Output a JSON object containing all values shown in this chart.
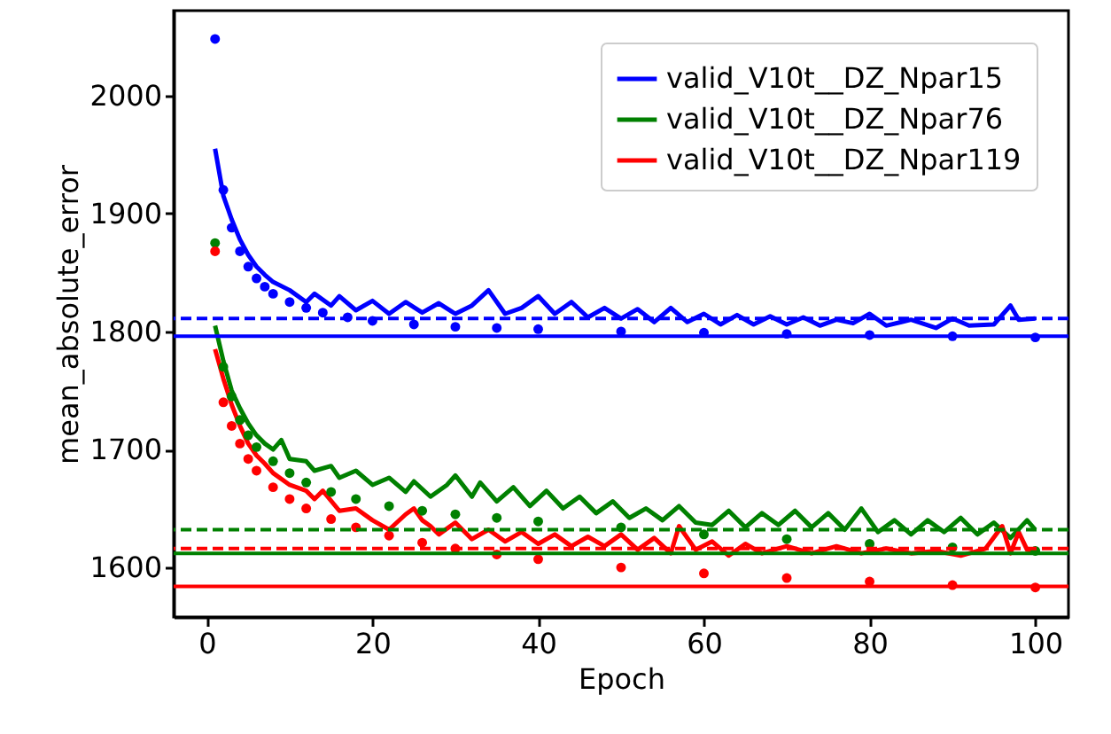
{
  "chart_data": {
    "type": "line",
    "xlabel": "Epoch",
    "ylabel": "mean_absolute_error",
    "xlim": [
      -4,
      104
    ],
    "ylim": [
      1558,
      2072
    ],
    "xticks": [
      0,
      20,
      40,
      60,
      80,
      100
    ],
    "yticks": [
      1600,
      1700,
      1800,
      1900,
      2000
    ],
    "grid": false,
    "legend": "top right",
    "series": [
      {
        "name": "valid_V10t__DZ_Npar15",
        "marker": "none",
        "color": "#0000ff",
        "x": [
          1,
          2,
          3,
          4,
          5,
          6,
          7,
          8,
          10,
          12,
          13,
          15,
          16,
          18,
          20,
          22,
          24,
          26,
          28,
          30,
          32,
          34,
          36,
          38,
          40,
          42,
          44,
          46,
          48,
          50,
          52,
          54,
          56,
          58,
          60,
          62,
          64,
          66,
          68,
          70,
          72,
          74,
          76,
          78,
          80,
          82,
          85,
          88,
          90,
          92,
          95,
          97,
          98,
          100
        ],
        "values": [
          1955,
          1915,
          1895,
          1878,
          1865,
          1855,
          1848,
          1842,
          1835,
          1825,
          1832,
          1822,
          1830,
          1818,
          1826,
          1815,
          1825,
          1816,
          1824,
          1815,
          1822,
          1835,
          1815,
          1820,
          1830,
          1815,
          1825,
          1812,
          1820,
          1811,
          1819,
          1808,
          1820,
          1808,
          1815,
          1806,
          1814,
          1806,
          1813,
          1806,
          1812,
          1805,
          1810,
          1807,
          1815,
          1805,
          1810,
          1803,
          1811,
          1805,
          1806,
          1822,
          1810,
          1811
        ]
      },
      {
        "name": "valid_V10t__DZ_Npar76",
        "marker": "none",
        "color": "#008000",
        "x": [
          1,
          2,
          3,
          4,
          5,
          6,
          7,
          8,
          9,
          10,
          12,
          13,
          15,
          16,
          18,
          20,
          22,
          24,
          25,
          27,
          29,
          30,
          32,
          33,
          35,
          37,
          39,
          41,
          43,
          45,
          47,
          49,
          51,
          53,
          55,
          57,
          59,
          61,
          63,
          65,
          67,
          69,
          71,
          73,
          75,
          77,
          79,
          81,
          83,
          85,
          87,
          89,
          91,
          93,
          95,
          97,
          99,
          100
        ],
        "values": [
          1805,
          1775,
          1750,
          1735,
          1722,
          1712,
          1705,
          1700,
          1708,
          1692,
          1690,
          1682,
          1686,
          1676,
          1682,
          1670,
          1676,
          1664,
          1673,
          1660,
          1670,
          1678,
          1660,
          1672,
          1656,
          1668,
          1652,
          1665,
          1650,
          1660,
          1646,
          1656,
          1642,
          1650,
          1640,
          1652,
          1638,
          1636,
          1648,
          1634,
          1646,
          1636,
          1648,
          1634,
          1646,
          1632,
          1650,
          1630,
          1640,
          1628,
          1640,
          1630,
          1642,
          1628,
          1638,
          1625,
          1640,
          1632
        ]
      },
      {
        "name": "valid_V10t__DZ_Npar119",
        "marker": "none",
        "color": "#ff0000",
        "x": [
          1,
          2,
          3,
          4,
          5,
          6,
          7,
          8,
          10,
          12,
          13,
          14,
          16,
          18,
          20,
          22,
          24,
          25,
          26,
          27,
          28,
          30,
          32,
          34,
          36,
          38,
          40,
          42,
          44,
          46,
          48,
          50,
          52,
          54,
          56,
          57,
          59,
          61,
          63,
          65,
          67,
          70,
          73,
          76,
          79,
          82,
          85,
          88,
          91,
          94,
          96,
          97,
          98,
          99,
          100
        ],
        "values": [
          1785,
          1760,
          1738,
          1720,
          1705,
          1695,
          1688,
          1680,
          1670,
          1665,
          1658,
          1665,
          1648,
          1650,
          1640,
          1632,
          1645,
          1650,
          1640,
          1635,
          1628,
          1638,
          1624,
          1632,
          1622,
          1630,
          1620,
          1628,
          1618,
          1626,
          1618,
          1628,
          1615,
          1625,
          1612,
          1635,
          1615,
          1622,
          1610,
          1620,
          1612,
          1618,
          1612,
          1618,
          1612,
          1616,
          1612,
          1614,
          1610,
          1616,
          1635,
          1612,
          1630,
          1615,
          1614
        ]
      },
      {
        "type": "scatter",
        "marker": "circle",
        "color": "#0000ff",
        "x": [
          1,
          2,
          3,
          4,
          5,
          6,
          7,
          8,
          10,
          12,
          14,
          17,
          20,
          25,
          30,
          35,
          40,
          50,
          60,
          70,
          80,
          90,
          100
        ],
        "values": [
          2048,
          1920,
          1888,
          1868,
          1855,
          1845,
          1838,
          1832,
          1825,
          1820,
          1816,
          1812,
          1809,
          1806,
          1804,
          1803,
          1802,
          1800,
          1799,
          1798,
          1797,
          1796,
          1795
        ]
      },
      {
        "type": "scatter",
        "marker": "circle",
        "color": "#008000",
        "x": [
          1,
          2,
          3,
          4,
          5,
          6,
          8,
          10,
          12,
          15,
          18,
          22,
          26,
          30,
          35,
          40,
          50,
          60,
          70,
          80,
          90,
          100
        ],
        "values": [
          1875,
          1770,
          1745,
          1725,
          1712,
          1702,
          1690,
          1680,
          1672,
          1664,
          1658,
          1652,
          1648,
          1645,
          1642,
          1639,
          1634,
          1628,
          1624,
          1620,
          1617,
          1614
        ]
      },
      {
        "type": "scatter",
        "marker": "circle",
        "color": "#ff0000",
        "x": [
          1,
          2,
          3,
          4,
          5,
          6,
          8,
          10,
          12,
          15,
          18,
          22,
          26,
          30,
          35,
          40,
          50,
          60,
          70,
          80,
          90,
          100
        ],
        "values": [
          1868,
          1740,
          1720,
          1705,
          1692,
          1682,
          1668,
          1658,
          1650,
          1641,
          1634,
          1627,
          1621,
          1616,
          1611,
          1607,
          1600,
          1595,
          1591,
          1588,
          1585,
          1583
        ]
      }
    ],
    "ref_lines": [
      {
        "axis": "y",
        "value": 1811,
        "color": "#0000ff",
        "line_style": "dashed"
      },
      {
        "axis": "y",
        "value": 1796,
        "color": "#0000ff",
        "line_style": "solid"
      },
      {
        "axis": "y",
        "value": 1632,
        "color": "#008000",
        "line_style": "dashed"
      },
      {
        "axis": "y",
        "value": 1612,
        "color": "#008000",
        "line_style": "solid"
      },
      {
        "axis": "y",
        "value": 1616,
        "color": "#ff0000",
        "line_style": "dashed"
      },
      {
        "axis": "y",
        "value": 1584,
        "color": "#ff0000",
        "line_style": "solid"
      }
    ]
  }
}
